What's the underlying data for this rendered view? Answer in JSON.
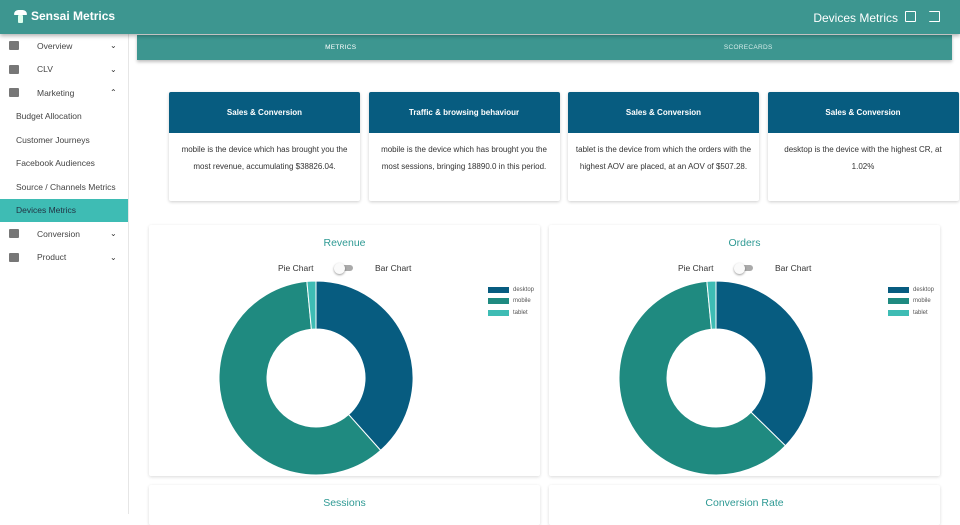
{
  "app": {
    "name": "Sensai Metrics",
    "page_title": "Devices Metrics"
  },
  "sidebar": {
    "items": [
      {
        "label": "Overview",
        "icon": "table-icon",
        "chev": "⌄"
      },
      {
        "label": "CLV",
        "icon": "dashboard-icon",
        "chev": "⌄"
      },
      {
        "label": "Marketing",
        "icon": "bar-chart-icon",
        "chev": "⌃"
      }
    ],
    "sub": [
      "Budget Allocation",
      "Customer Journeys",
      "Facebook Audiences",
      "Source / Channels Metrics",
      "Devices Metrics"
    ],
    "after": [
      {
        "label": "Conversion",
        "icon": "dollar-icon",
        "chev": "⌄"
      },
      {
        "label": "Product",
        "icon": "bike-icon",
        "chev": "⌄"
      }
    ]
  },
  "tabs": [
    "METRICS",
    "SCORECARDS"
  ],
  "cards": [
    {
      "title": "Sales & Conversion",
      "text": "mobile is the device which has brought you the most revenue, accumulating $38826.04."
    },
    {
      "title": "Traffic & browsing behaviour",
      "text": "mobile is the device which has brought you the most sessions, bringing 18890.0 in this period."
    },
    {
      "title": "Sales & Conversion",
      "text": "tablet is the device from which the orders with the highest AOV are placed, at an AOV of $507.28."
    },
    {
      "title": "Sales & Conversion",
      "text": "desktop is the device with the highest CR, at 1.02%"
    }
  ],
  "toggle": {
    "left": "Pie Chart",
    "right": "Bar Chart"
  },
  "chart_data": [
    {
      "type": "pie",
      "title": "Revenue",
      "categories": [
        "desktop",
        "mobile",
        "tablet"
      ],
      "values": [
        38.4,
        60.1,
        1.5
      ],
      "unit": "percent (estimated)",
      "colors": [
        "#075c80",
        "#1f8a80",
        "#3ebcb4"
      ],
      "legend": "top-right"
    },
    {
      "type": "pie",
      "title": "Orders",
      "categories": [
        "desktop",
        "mobile",
        "tablet"
      ],
      "values": [
        37.3,
        61.2,
        1.5
      ],
      "unit": "percent (estimated)",
      "colors": [
        "#075c80",
        "#1f8a80",
        "#3ebcb4"
      ],
      "legend": "top-right"
    },
    {
      "type": "pie",
      "title": "Sessions"
    },
    {
      "type": "pie",
      "title": "Conversion Rate"
    }
  ]
}
